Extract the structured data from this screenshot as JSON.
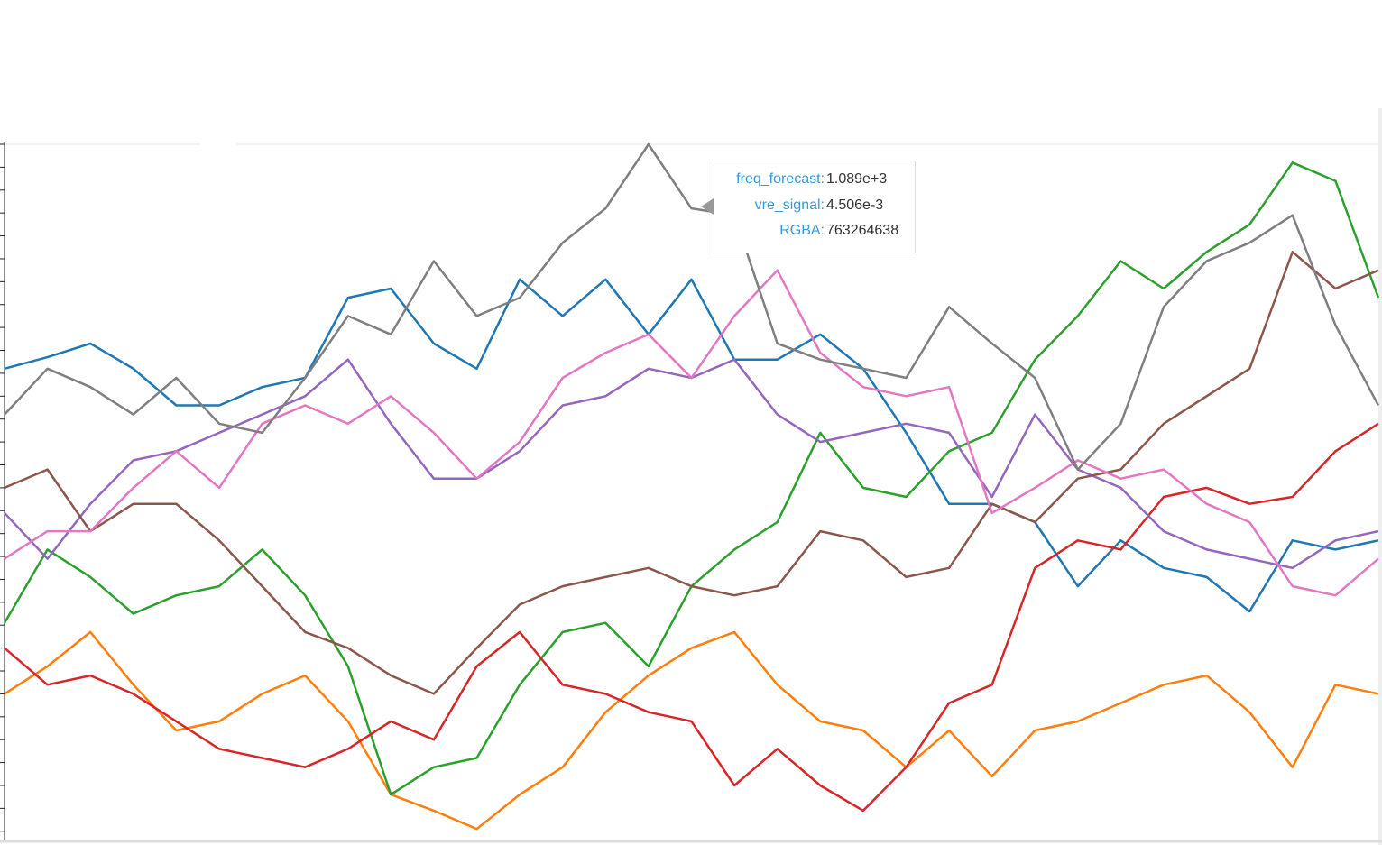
{
  "chart_data": {
    "type": "line",
    "x": [
      0,
      1,
      2,
      3,
      4,
      5,
      6,
      7,
      8,
      9,
      10,
      11,
      12,
      13,
      14,
      15,
      16,
      17,
      18,
      19,
      20,
      21,
      22,
      23,
      24,
      25,
      26,
      27,
      28,
      29,
      30,
      31,
      32
    ],
    "xlim": [
      0,
      32
    ],
    "ylim": [
      -0.6,
      30
    ],
    "yticks": [
      0,
      1,
      2,
      3,
      4,
      5,
      6,
      7,
      8,
      9,
      10,
      11,
      12,
      13,
      14,
      15,
      16,
      17,
      18,
      19,
      20,
      21,
      22,
      23,
      24,
      25,
      26,
      27,
      28,
      29,
      30
    ],
    "series": [
      {
        "color": "#1f77b4",
        "values": [
          20.2,
          20.7,
          21.3,
          20.2,
          18.6,
          18.6,
          19.4,
          19.8,
          23.3,
          23.7,
          21.3,
          20.2,
          24.1,
          22.5,
          24.1,
          21.7,
          24.1,
          20.6,
          20.6,
          21.7,
          20.2,
          17.4,
          14.3,
          14.3,
          13.5,
          10.7,
          12.7,
          11.5,
          11.1,
          9.6,
          12.7,
          12.3,
          12.7
        ]
      },
      {
        "color": "#ff7f0e",
        "values": [
          6.0,
          7.2,
          8.7,
          6.4,
          4.4,
          4.8,
          6.0,
          6.8,
          4.8,
          1.6,
          0.9,
          0.1,
          1.6,
          2.8,
          5.2,
          6.8,
          8.0,
          8.7,
          6.4,
          4.8,
          4.4,
          2.8,
          4.4,
          2.4,
          4.4,
          4.8,
          5.6,
          6.4,
          6.8,
          5.2,
          2.8,
          6.4,
          6.0
        ]
      },
      {
        "color": "#2ca02c",
        "values": [
          9.1,
          12.3,
          11.1,
          9.5,
          10.3,
          10.7,
          12.3,
          10.3,
          7.2,
          1.6,
          2.8,
          3.2,
          6.4,
          8.7,
          9.1,
          7.2,
          10.7,
          12.3,
          13.5,
          17.4,
          15.0,
          14.6,
          16.6,
          17.4,
          20.6,
          22.5,
          24.9,
          23.7,
          25.3,
          26.5,
          29.2,
          28.4,
          23.3
        ]
      },
      {
        "color": "#d62728",
        "values": [
          8.0,
          6.4,
          6.8,
          6.0,
          4.8,
          3.6,
          3.2,
          2.8,
          3.6,
          4.8,
          4.0,
          7.2,
          8.7,
          6.4,
          6.0,
          5.2,
          4.8,
          2.0,
          3.6,
          2.0,
          0.9,
          2.8,
          5.6,
          6.4,
          11.5,
          12.7,
          12.3,
          14.6,
          15.0,
          14.3,
          14.6,
          16.6,
          17.8
        ]
      },
      {
        "color": "#9467bd",
        "values": [
          13.9,
          11.9,
          14.3,
          16.2,
          16.6,
          17.4,
          18.2,
          19.0,
          20.6,
          17.8,
          15.4,
          15.4,
          16.6,
          18.6,
          19.0,
          20.2,
          19.8,
          20.6,
          18.2,
          17.0,
          17.4,
          17.8,
          17.4,
          14.6,
          18.2,
          15.8,
          15.0,
          13.1,
          12.3,
          11.9,
          11.5,
          12.7,
          13.1
        ]
      },
      {
        "color": "#8c564b",
        "values": [
          15.0,
          15.8,
          13.1,
          14.3,
          14.3,
          12.7,
          10.7,
          8.7,
          8.0,
          6.8,
          6.0,
          8.0,
          9.9,
          10.7,
          11.1,
          11.5,
          10.7,
          10.3,
          10.7,
          13.1,
          12.7,
          11.1,
          11.5,
          14.3,
          13.5,
          15.4,
          15.8,
          17.8,
          19.0,
          20.2,
          25.3,
          23.7,
          24.5
        ]
      },
      {
        "color": "#e377c2",
        "values": [
          11.9,
          13.1,
          13.1,
          15.0,
          16.6,
          15.0,
          17.8,
          18.6,
          17.8,
          19.0,
          17.4,
          15.4,
          17.0,
          19.8,
          20.9,
          21.7,
          19.8,
          22.5,
          24.5,
          20.9,
          19.4,
          19.0,
          19.4,
          13.9,
          15.0,
          16.2,
          15.4,
          15.8,
          14.3,
          13.5,
          10.7,
          10.3,
          11.9
        ]
      },
      {
        "color": "#7f7f7f",
        "values": [
          18.2,
          20.2,
          19.4,
          18.2,
          19.8,
          17.8,
          17.4,
          19.8,
          22.5,
          21.7,
          24.9,
          22.5,
          23.3,
          25.7,
          27.2,
          30.0,
          27.2,
          26.9,
          21.3,
          20.6,
          20.2,
          19.8,
          22.9,
          21.3,
          19.8,
          15.8,
          17.8,
          22.9,
          24.9,
          25.7,
          26.9,
          22.1,
          18.6
        ]
      }
    ]
  },
  "tooltip": {
    "rows": [
      {
        "label": "freq_forecast:",
        "value": "1.089e+3"
      },
      {
        "label": "vre_signal:",
        "value": "4.506e-3"
      },
      {
        "label": "RGBA:",
        "value": "763264638"
      }
    ]
  }
}
